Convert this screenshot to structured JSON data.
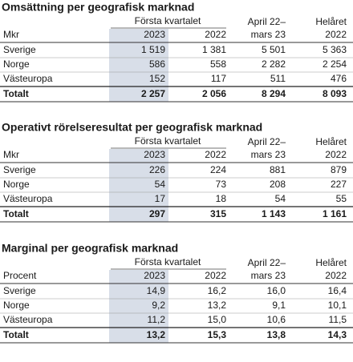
{
  "sections": [
    {
      "title": "Omsättning per geografisk marknad",
      "header": {
        "group": "Första kvartalet",
        "unit": "Mkr",
        "col1": "2023",
        "col2": "2022",
        "col3_line1": "April 22–",
        "col3_line2": "mars 23",
        "col4_line1": "Helåret",
        "col4_line2": "2022"
      },
      "rows": [
        [
          "Sverige",
          "1 519",
          "1 381",
          "5 501",
          "5 363"
        ],
        [
          "Norge",
          "586",
          "558",
          "2 282",
          "2 254"
        ],
        [
          "Västeuropa",
          "152",
          "117",
          "511",
          "476"
        ]
      ],
      "total": [
        "Totalt",
        "2 257",
        "2 056",
        "8 294",
        "8 093"
      ]
    },
    {
      "title": "Operativt rörelseresultat per geografisk marknad",
      "header": {
        "group": "Första kvartalet",
        "unit": "Mkr",
        "col1": "2023",
        "col2": "2022",
        "col3_line1": "April 22–",
        "col3_line2": "mars 23",
        "col4_line1": "Helåret",
        "col4_line2": "2022"
      },
      "rows": [
        [
          "Sverige",
          "226",
          "224",
          "881",
          "879"
        ],
        [
          "Norge",
          "54",
          "73",
          "208",
          "227"
        ],
        [
          "Västeuropa",
          "17",
          "18",
          "54",
          "55"
        ]
      ],
      "total": [
        "Totalt",
        "297",
        "315",
        "1 143",
        "1 161"
      ]
    },
    {
      "title": "Marginal per geografisk marknad",
      "header": {
        "group": "Första kvartalet",
        "unit": "Procent",
        "col1": "2023",
        "col2": "2022",
        "col3_line1": "April 22–",
        "col3_line2": "mars 23",
        "col4_line1": "Helåret",
        "col4_line2": "2022"
      },
      "rows": [
        [
          "Sverige",
          "14,9",
          "16,2",
          "16,0",
          "16,4"
        ],
        [
          "Norge",
          "9,2",
          "13,2",
          "9,1",
          "10,1"
        ],
        [
          "Västeuropa",
          "11,2",
          "15,0",
          "10,6",
          "11,5"
        ]
      ],
      "total": [
        "Totalt",
        "13,2",
        "15,3",
        "13,8",
        "14,3"
      ]
    }
  ]
}
